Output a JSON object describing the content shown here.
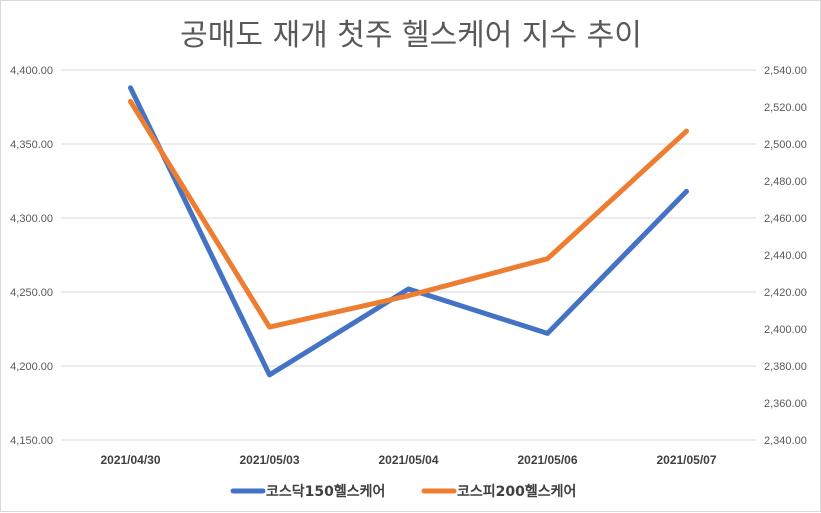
{
  "chart_data": {
    "type": "line",
    "title": "공매도 재개 첫주 헬스케어 지수 추이",
    "categories": [
      "2021/04/30",
      "2021/05/03",
      "2021/05/04",
      "2021/05/06",
      "2021/05/07"
    ],
    "y_left": {
      "ylim": [
        4150,
        4400
      ],
      "ticks": [
        "4,150.00",
        "4,200.00",
        "4,250.00",
        "4,300.00",
        "4,350.00",
        "4,400.00"
      ]
    },
    "y_right": {
      "ylim": [
        2340,
        2540
      ],
      "ticks": [
        "2,340.00",
        "2,360.00",
        "2,380.00",
        "2,400.00",
        "2,420.00",
        "2,440.00",
        "2,460.00",
        "2,480.00",
        "2,500.00",
        "2,520.00",
        "2,540.00"
      ]
    },
    "series": [
      {
        "name": "코스닥150헬스케어",
        "axis": "left",
        "color": "#4472C4",
        "values": [
          4388,
          4194,
          4252,
          4222,
          4318
        ]
      },
      {
        "name": "코스피200헬스케어",
        "axis": "right",
        "color": "#ED7D31",
        "values": [
          2523,
          2401,
          2418,
          2438,
          2507
        ]
      }
    ],
    "grid": true,
    "legend": "bottom"
  }
}
